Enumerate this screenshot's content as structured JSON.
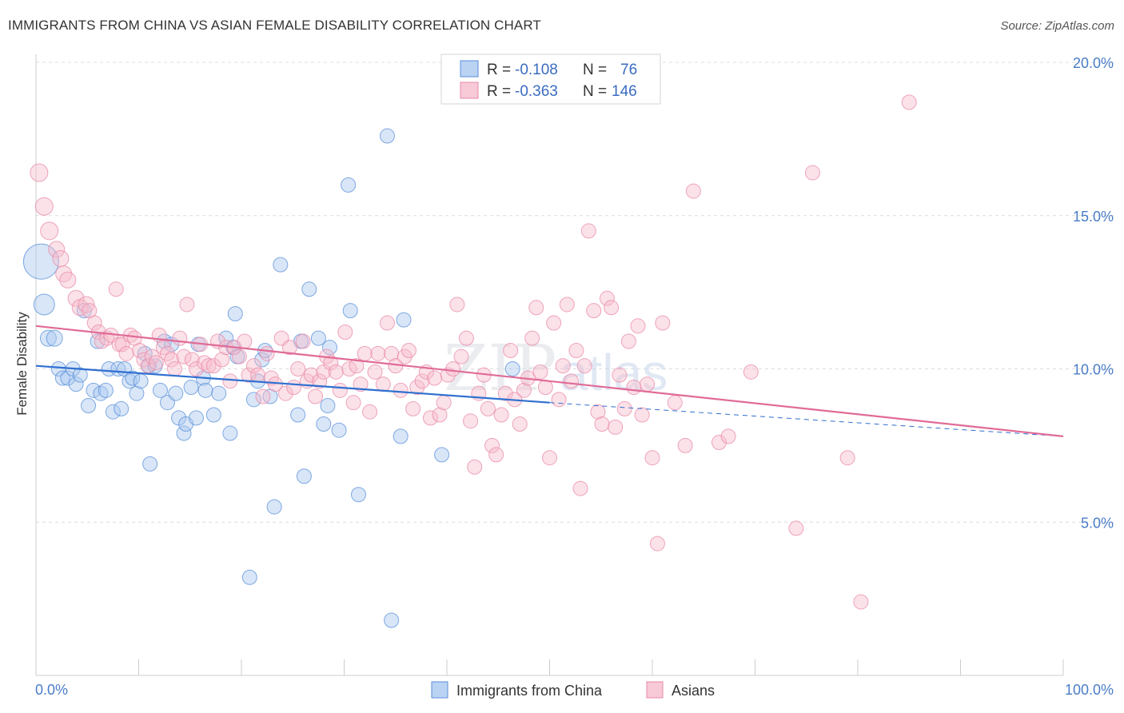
{
  "header": {
    "title": "IMMIGRANTS FROM CHINA VS ASIAN FEMALE DISABILITY CORRELATION CHART",
    "source": "Source: ZipAtlas.com"
  },
  "watermark": {
    "zip": "ZIP",
    "atlas": "atlas"
  },
  "legend": {
    "rows": [
      {
        "r_label": "R =",
        "r_value": "-0.108",
        "n_label": "N =",
        "n_value": "76",
        "color": "#a9c8f0",
        "stroke": "#5a8fd8"
      },
      {
        "r_label": "R =",
        "r_value": "-0.363",
        "n_label": "N =",
        "n_value": "146",
        "color": "#f6bccd",
        "stroke": "#e889a8"
      }
    ]
  },
  "bottom_legend": [
    {
      "label": "Immigrants from China",
      "color": "#a9c8f0",
      "stroke": "#5a8fd8"
    },
    {
      "label": "Asians",
      "color": "#f6bccd",
      "stroke": "#e889a8"
    }
  ],
  "chart_data": {
    "type": "scatter",
    "title": "IMMIGRANTS FROM CHINA VS ASIAN FEMALE DISABILITY CORRELATION CHART",
    "xlabel": "",
    "ylabel": "Female Disability",
    "xlim": [
      0,
      100
    ],
    "ylim": [
      0,
      20
    ],
    "x_tick_labels": [
      "0.0%",
      "100.0%"
    ],
    "y_ticks": [
      5,
      10,
      15,
      20
    ],
    "y_tick_labels": [
      "5.0%",
      "10.0%",
      "15.0%",
      "20.0%"
    ],
    "grid": "horizontal dashed",
    "legend_placement": "top-center",
    "series": [
      {
        "name": "Immigrants from China",
        "color": "#a9c8f0",
        "stroke": "#5a8fd8",
        "trend": {
          "x": [
            0,
            50
          ],
          "y": [
            10.1,
            8.9
          ],
          "extended_to": [
            100,
            7.8
          ],
          "color": "#2f6fd0"
        },
        "points": [
          [
            0.5,
            13.5,
            22
          ],
          [
            0.8,
            12.1,
            13
          ],
          [
            1.2,
            11.0,
            10
          ],
          [
            1.8,
            11.0,
            10
          ],
          [
            2.2,
            10.0,
            9
          ],
          [
            2.6,
            9.7,
            9
          ],
          [
            3.1,
            9.7,
            9
          ],
          [
            3.6,
            10.0,
            9
          ],
          [
            3.9,
            9.5,
            9
          ],
          [
            4.3,
            9.8,
            9
          ],
          [
            4.7,
            11.9,
            9
          ],
          [
            5.1,
            8.8,
            9
          ],
          [
            5.6,
            9.3,
            9
          ],
          [
            6.0,
            10.9,
            9
          ],
          [
            6.3,
            9.2,
            9
          ],
          [
            6.8,
            9.3,
            9
          ],
          [
            7.1,
            10.0,
            9
          ],
          [
            7.5,
            8.6,
            9
          ],
          [
            8.0,
            10.0,
            9
          ],
          [
            8.3,
            8.7,
            9
          ],
          [
            8.6,
            10.0,
            9
          ],
          [
            9.1,
            9.6,
            9
          ],
          [
            9.4,
            9.7,
            9
          ],
          [
            9.8,
            9.2,
            9
          ],
          [
            10.2,
            9.6,
            9
          ],
          [
            10.6,
            10.5,
            9
          ],
          [
            11.0,
            10.1,
            9
          ],
          [
            11.1,
            6.9,
            9
          ],
          [
            11.6,
            10.1,
            9
          ],
          [
            12.1,
            9.3,
            9
          ],
          [
            12.5,
            10.9,
            9
          ],
          [
            12.8,
            8.9,
            9
          ],
          [
            13.2,
            10.8,
            9
          ],
          [
            13.6,
            9.2,
            9
          ],
          [
            13.9,
            8.4,
            9
          ],
          [
            14.4,
            7.9,
            9
          ],
          [
            14.6,
            8.2,
            9
          ],
          [
            15.1,
            9.4,
            9
          ],
          [
            15.6,
            8.4,
            9
          ],
          [
            15.8,
            10.8,
            9
          ],
          [
            16.3,
            9.7,
            9
          ],
          [
            16.5,
            9.3,
            9
          ],
          [
            17.3,
            8.5,
            9
          ],
          [
            17.8,
            9.2,
            9
          ],
          [
            18.5,
            11.0,
            9
          ],
          [
            18.9,
            7.9,
            9
          ],
          [
            19.2,
            10.7,
            9
          ],
          [
            19.4,
            11.8,
            9
          ],
          [
            19.6,
            10.4,
            9
          ],
          [
            20.8,
            3.2,
            9
          ],
          [
            21.2,
            9.0,
            9
          ],
          [
            21.6,
            9.6,
            9
          ],
          [
            22.0,
            10.3,
            9
          ],
          [
            22.3,
            10.6,
            9
          ],
          [
            22.8,
            9.1,
            9
          ],
          [
            23.2,
            5.5,
            9
          ],
          [
            23.8,
            13.4,
            9
          ],
          [
            25.5,
            8.5,
            9
          ],
          [
            25.8,
            10.9,
            9
          ],
          [
            26.1,
            6.5,
            9
          ],
          [
            26.6,
            12.6,
            9
          ],
          [
            27.5,
            11.0,
            9
          ],
          [
            28.0,
            8.2,
            9
          ],
          [
            28.4,
            8.8,
            9
          ],
          [
            28.6,
            10.7,
            9
          ],
          [
            29.5,
            8.0,
            9
          ],
          [
            30.4,
            16.0,
            9
          ],
          [
            30.6,
            11.9,
            9
          ],
          [
            31.4,
            5.9,
            9
          ],
          [
            34.2,
            17.6,
            9
          ],
          [
            34.6,
            1.8,
            9
          ],
          [
            35.5,
            7.8,
            9
          ],
          [
            35.8,
            11.6,
            9
          ],
          [
            39.5,
            7.2,
            9
          ],
          [
            46.4,
            10.0,
            9
          ]
        ]
      },
      {
        "name": "Asians",
        "color": "#f6bccd",
        "stroke": "#e889a8",
        "trend": {
          "x": [
            0,
            100
          ],
          "y": [
            11.4,
            7.8
          ],
          "color": "#e06b97"
        },
        "points": [
          [
            0.3,
            16.4,
            11
          ],
          [
            0.8,
            15.3,
            11
          ],
          [
            1.3,
            14.5,
            11
          ],
          [
            2.0,
            13.9,
            10
          ],
          [
            2.4,
            13.6,
            10
          ],
          [
            2.7,
            13.1,
            10
          ],
          [
            3.1,
            12.9,
            10
          ],
          [
            3.9,
            12.3,
            10
          ],
          [
            4.3,
            12.0,
            10
          ],
          [
            4.9,
            12.1,
            10
          ],
          [
            5.2,
            11.9,
            9
          ],
          [
            5.7,
            11.5,
            9
          ],
          [
            6.1,
            11.2,
            9
          ],
          [
            6.4,
            10.9,
            9
          ],
          [
            6.9,
            11.0,
            9
          ],
          [
            7.3,
            11.1,
            9
          ],
          [
            7.8,
            12.6,
            9
          ],
          [
            8.1,
            10.8,
            9
          ],
          [
            8.4,
            10.8,
            9
          ],
          [
            8.8,
            10.5,
            9
          ],
          [
            9.2,
            11.1,
            9
          ],
          [
            9.6,
            11.0,
            9
          ],
          [
            10.1,
            10.6,
            9
          ],
          [
            10.5,
            10.3,
            9
          ],
          [
            10.9,
            10.1,
            9
          ],
          [
            11.3,
            10.4,
            9
          ],
          [
            11.7,
            10.2,
            9
          ],
          [
            12.0,
            11.1,
            9
          ],
          [
            12.4,
            10.7,
            9
          ],
          [
            12.8,
            10.5,
            9
          ],
          [
            13.2,
            10.3,
            9
          ],
          [
            13.5,
            10.0,
            9
          ],
          [
            14.0,
            11.0,
            9
          ],
          [
            14.4,
            10.4,
            9
          ],
          [
            14.7,
            12.1,
            9
          ],
          [
            15.2,
            10.3,
            9
          ],
          [
            15.6,
            10.0,
            9
          ],
          [
            16.0,
            10.8,
            9
          ],
          [
            16.4,
            10.2,
            9
          ],
          [
            16.8,
            10.1,
            9
          ],
          [
            17.3,
            10.1,
            9
          ],
          [
            17.7,
            10.9,
            9
          ],
          [
            18.1,
            10.3,
            9
          ],
          [
            18.5,
            10.7,
            9
          ],
          [
            18.9,
            9.6,
            9
          ],
          [
            19.3,
            10.7,
            9
          ],
          [
            19.8,
            10.4,
            9
          ],
          [
            20.3,
            10.9,
            9
          ],
          [
            20.7,
            9.8,
            9
          ],
          [
            21.2,
            10.1,
            9
          ],
          [
            21.6,
            9.8,
            9
          ],
          [
            22.1,
            9.1,
            9
          ],
          [
            22.5,
            10.5,
            9
          ],
          [
            22.9,
            9.7,
            9
          ],
          [
            23.3,
            9.5,
            9
          ],
          [
            23.9,
            11.0,
            9
          ],
          [
            24.3,
            9.2,
            9
          ],
          [
            24.7,
            10.7,
            9
          ],
          [
            25.1,
            9.4,
            9
          ],
          [
            25.5,
            10.0,
            9
          ],
          [
            26.0,
            10.9,
            9
          ],
          [
            26.4,
            9.6,
            9
          ],
          [
            26.8,
            9.8,
            9
          ],
          [
            27.2,
            9.1,
            9
          ],
          [
            27.6,
            9.6,
            9
          ],
          [
            28.0,
            9.9,
            9
          ],
          [
            28.3,
            10.4,
            9
          ],
          [
            28.7,
            10.2,
            9
          ],
          [
            29.2,
            9.9,
            9
          ],
          [
            29.6,
            9.3,
            9
          ],
          [
            30.1,
            11.2,
            9
          ],
          [
            30.5,
            10.0,
            9
          ],
          [
            30.9,
            8.9,
            9
          ],
          [
            31.2,
            10.1,
            9
          ],
          [
            31.6,
            9.5,
            9
          ],
          [
            32.0,
            10.5,
            9
          ],
          [
            32.5,
            8.6,
            9
          ],
          [
            33.0,
            9.9,
            9
          ],
          [
            33.3,
            10.5,
            9
          ],
          [
            33.8,
            9.5,
            9
          ],
          [
            34.2,
            11.5,
            9
          ],
          [
            34.6,
            10.5,
            9
          ],
          [
            35.0,
            10.1,
            9
          ],
          [
            35.5,
            9.3,
            9
          ],
          [
            35.9,
            10.4,
            9
          ],
          [
            36.3,
            10.6,
            9
          ],
          [
            36.7,
            8.7,
            9
          ],
          [
            37.1,
            9.4,
            9
          ],
          [
            37.6,
            9.6,
            9
          ],
          [
            38.0,
            9.9,
            9
          ],
          [
            38.4,
            8.4,
            9
          ],
          [
            38.8,
            9.7,
            9
          ],
          [
            39.3,
            8.5,
            9
          ],
          [
            39.7,
            8.9,
            9
          ],
          [
            40.1,
            9.8,
            9
          ],
          [
            40.6,
            10.0,
            9
          ],
          [
            41.0,
            12.1,
            9
          ],
          [
            41.4,
            10.4,
            9
          ],
          [
            41.9,
            11.0,
            9
          ],
          [
            42.3,
            8.3,
            9
          ],
          [
            42.7,
            6.8,
            9
          ],
          [
            43.1,
            9.2,
            9
          ],
          [
            43.6,
            9.8,
            9
          ],
          [
            44.0,
            8.7,
            9
          ],
          [
            44.4,
            7.5,
            9
          ],
          [
            44.8,
            7.2,
            9
          ],
          [
            45.3,
            8.5,
            9
          ],
          [
            45.7,
            9.2,
            9
          ],
          [
            46.2,
            10.6,
            9
          ],
          [
            46.6,
            9.0,
            9
          ],
          [
            47.1,
            8.2,
            9
          ],
          [
            47.5,
            9.3,
            9
          ],
          [
            47.9,
            9.7,
            9
          ],
          [
            48.3,
            11.0,
            9
          ],
          [
            48.7,
            12.0,
            9
          ],
          [
            49.1,
            9.9,
            9
          ],
          [
            49.6,
            9.4,
            9
          ],
          [
            50.0,
            7.1,
            9
          ],
          [
            50.4,
            11.5,
            9
          ],
          [
            50.9,
            9.0,
            9
          ],
          [
            51.3,
            10.1,
            9
          ],
          [
            51.7,
            12.1,
            9
          ],
          [
            52.1,
            9.6,
            9
          ],
          [
            52.6,
            10.6,
            9
          ],
          [
            53.0,
            6.1,
            9
          ],
          [
            53.4,
            10.1,
            9
          ],
          [
            53.8,
            14.5,
            9
          ],
          [
            54.3,
            11.9,
            9
          ],
          [
            54.7,
            8.6,
            9
          ],
          [
            55.1,
            8.2,
            9
          ],
          [
            55.6,
            12.3,
            9
          ],
          [
            56.0,
            12.0,
            9
          ],
          [
            56.4,
            8.1,
            9
          ],
          [
            56.8,
            9.8,
            9
          ],
          [
            57.3,
            8.7,
            9
          ],
          [
            57.7,
            10.9,
            9
          ],
          [
            58.2,
            9.4,
            9
          ],
          [
            58.6,
            11.4,
            9
          ],
          [
            59.0,
            8.5,
            9
          ],
          [
            59.5,
            9.5,
            9
          ],
          [
            60.0,
            7.1,
            9
          ],
          [
            60.5,
            4.3,
            9
          ],
          [
            61.0,
            11.5,
            9
          ],
          [
            62.2,
            8.9,
            9
          ],
          [
            63.2,
            7.5,
            9
          ],
          [
            64.0,
            15.8,
            9
          ],
          [
            66.5,
            7.6,
            9
          ],
          [
            67.4,
            7.8,
            9
          ],
          [
            69.6,
            9.9,
            9
          ],
          [
            74.0,
            4.8,
            9
          ],
          [
            75.6,
            16.4,
            9
          ],
          [
            79.0,
            7.1,
            9
          ],
          [
            80.3,
            2.4,
            9
          ],
          [
            85.0,
            18.7,
            9
          ]
        ]
      }
    ]
  }
}
